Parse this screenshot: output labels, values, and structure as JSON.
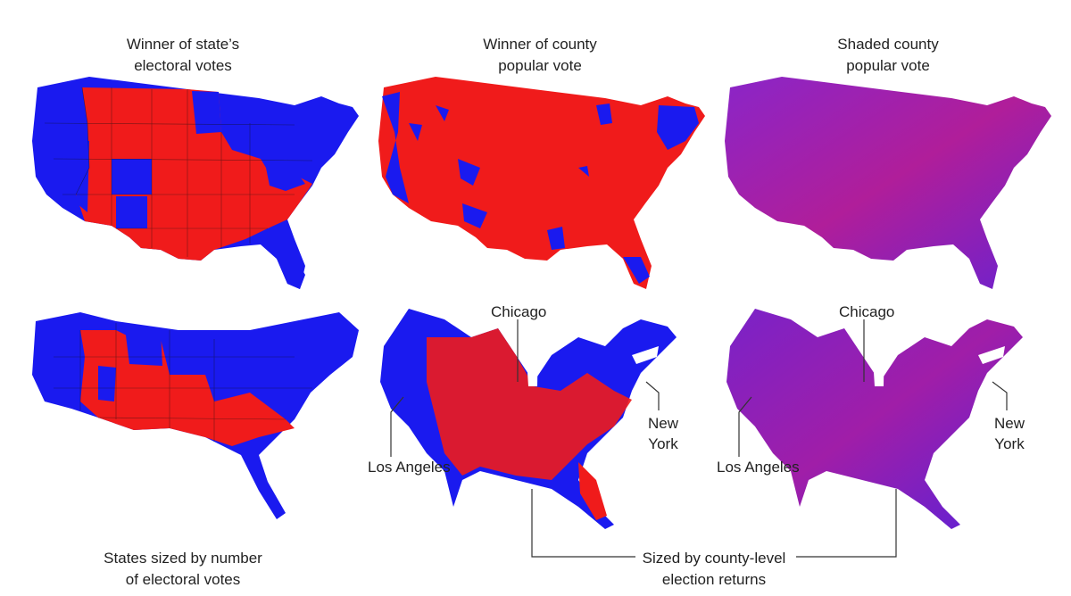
{
  "captions": {
    "top_left": [
      "Winner of state’s",
      "electoral votes"
    ],
    "top_middle": [
      "Winner of county",
      "popular vote"
    ],
    "top_right": [
      "Shaded county",
      "popular vote"
    ],
    "bottom_left": [
      "States sized by number",
      "of electoral votes"
    ],
    "bottom_center": [
      "Sized by county-level",
      "election returns"
    ]
  },
  "city_labels": {
    "chicago": "Chicago",
    "los_angeles": "Los Angeles",
    "new_york_line1": "New",
    "new_york_line2": "York"
  },
  "colors": {
    "republican": "#f01b1b",
    "democrat": "#1a1aef",
    "shaded_mix": "#7a22c8",
    "leader_line": "#333333"
  }
}
